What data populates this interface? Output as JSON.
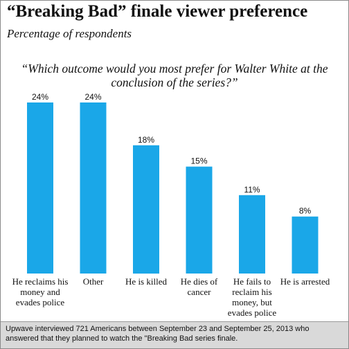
{
  "chart_data": {
    "type": "bar",
    "title": "“Breaking Bad” finale viewer preference",
    "subtitle": "Percentage of respondents",
    "question": "“Which outcome would you most prefer for Walter White at the conclusion of the series?”",
    "categories": [
      "He reclaims his money and evades police",
      "Other",
      "He is killed",
      "He dies of cancer",
      "He fails to reclaim his money, but evades police",
      "He is arrested"
    ],
    "category_lines": [
      [
        "He reclaims his",
        "money and",
        "evades police"
      ],
      [
        "Other"
      ],
      [
        "He is killed"
      ],
      [
        "He dies of",
        "cancer"
      ],
      [
        "He fails to",
        "reclaim his",
        "money, but",
        "evades police"
      ],
      [
        "He is arrested"
      ]
    ],
    "values": [
      24,
      24,
      18,
      15,
      11,
      8
    ],
    "value_labels": [
      "24%",
      "24%",
      "18%",
      "15%",
      "11%",
      "8%"
    ],
    "ylim": [
      0,
      24
    ],
    "grid": false,
    "bar_color": "#1aa7e8"
  },
  "footer": {
    "line1": "Upwave interviewed 721 Americans between September 23 and September 25, 2013 who",
    "line2": "answered that they planned to watch the \"Breaking Bad series finale."
  }
}
